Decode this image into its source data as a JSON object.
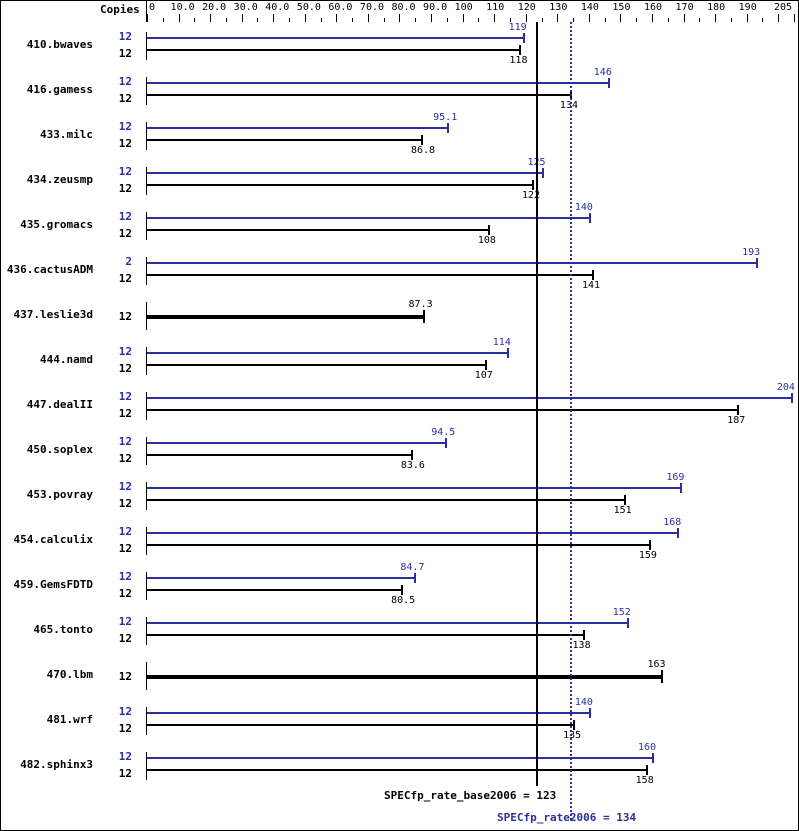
{
  "header": {
    "copies_label": "Copies"
  },
  "axis": {
    "ticks": [
      "0",
      "10.0",
      "20.0",
      "30.0",
      "40.0",
      "50.0",
      "60.0",
      "70.0",
      "80.0",
      "90.0",
      "100",
      "110",
      "120",
      "130",
      "140",
      "150",
      "160",
      "170",
      "180",
      "190",
      "205"
    ],
    "tick_values": [
      0,
      10,
      20,
      30,
      40,
      50,
      60,
      70,
      80,
      90,
      100,
      110,
      120,
      130,
      140,
      150,
      160,
      170,
      180,
      190,
      205
    ],
    "min": 0,
    "max": 205
  },
  "colors": {
    "peak": "#2b2f9e",
    "base": "#000000"
  },
  "summary": {
    "base_label": "SPECfp_rate_base2006 = 123",
    "peak_label": "SPECfp_rate2006 = 134",
    "base_value": 123,
    "peak_value": 134
  },
  "chart_data": {
    "type": "bar",
    "title": "",
    "xlabel": "",
    "ylabel": "",
    "xlim": [
      0,
      205
    ],
    "orientation": "horizontal",
    "categories": [
      "410.bwaves",
      "416.gamess",
      "433.milc",
      "434.zeusmp",
      "435.gromacs",
      "436.cactusADM",
      "437.leslie3d",
      "444.namd",
      "447.dealII",
      "450.soplex",
      "453.povray",
      "454.calculix",
      "459.GemsFDTD",
      "465.tonto",
      "470.lbm",
      "481.wrf",
      "482.sphinx3"
    ],
    "series": [
      {
        "name": "Peak (SPECfp_rate2006)",
        "color": "#2b2f9e",
        "copies": [
          "12",
          "12",
          "12",
          "12",
          "12",
          "2",
          null,
          "12",
          "12",
          "12",
          "12",
          "12",
          "12",
          "12",
          null,
          "12",
          "12"
        ],
        "values": [
          119,
          146,
          95.1,
          125,
          140,
          193,
          null,
          114,
          204,
          94.5,
          169,
          168,
          84.7,
          152,
          null,
          140,
          160
        ],
        "labels": [
          "119",
          "146",
          "95.1",
          "125",
          "140",
          "193",
          null,
          "114",
          "204",
          "94.5",
          "169",
          "168",
          "84.7",
          "152",
          null,
          "140",
          "160"
        ]
      },
      {
        "name": "Base (SPECfp_rate_base2006)",
        "color": "#000000",
        "copies": [
          "12",
          "12",
          "12",
          "12",
          "12",
          "12",
          "12",
          "12",
          "12",
          "12",
          "12",
          "12",
          "12",
          "12",
          "12",
          "12",
          "12"
        ],
        "values": [
          118,
          134,
          86.8,
          122,
          108,
          141,
          87.3,
          107,
          187,
          83.6,
          151,
          159,
          80.5,
          138,
          163,
          135,
          158
        ],
        "labels": [
          "118",
          "134",
          "86.8",
          "122",
          "108",
          "141",
          "87.3",
          "107",
          "187",
          "83.6",
          "151",
          "159",
          "80.5",
          "138",
          "163",
          "135",
          "158"
        ]
      }
    ],
    "reference_lines": [
      {
        "name": "SPECfp_rate_base2006",
        "value": 123,
        "style": "solid",
        "color": "#000000"
      },
      {
        "name": "SPECfp_rate2006",
        "value": 134,
        "style": "dotted",
        "color": "#2b2f9e"
      }
    ],
    "grid": false,
    "legend": "none"
  },
  "rows": [
    {
      "name": "410.bwaves",
      "peak_copies": "12",
      "base_copies": "12",
      "peak": 119,
      "peak_label": "119",
      "base": 118,
      "base_label": "118"
    },
    {
      "name": "416.gamess",
      "peak_copies": "12",
      "base_copies": "12",
      "peak": 146,
      "peak_label": "146",
      "base": 134,
      "base_label": "134"
    },
    {
      "name": "433.milc",
      "peak_copies": "12",
      "base_copies": "12",
      "peak": 95.1,
      "peak_label": "95.1",
      "base": 86.8,
      "base_label": "86.8"
    },
    {
      "name": "434.zeusmp",
      "peak_copies": "12",
      "base_copies": "12",
      "peak": 125,
      "peak_label": "125",
      "base": 122,
      "base_label": "122"
    },
    {
      "name": "435.gromacs",
      "peak_copies": "12",
      "base_copies": "12",
      "peak": 140,
      "peak_label": "140",
      "base": 108,
      "base_label": "108"
    },
    {
      "name": "436.cactusADM",
      "peak_copies": "2",
      "base_copies": "12",
      "peak": 193,
      "peak_label": "193",
      "base": 141,
      "base_label": "141"
    },
    {
      "name": "437.leslie3d",
      "single_copies": "12",
      "single": 87.3,
      "single_label": "87.3"
    },
    {
      "name": "444.namd",
      "peak_copies": "12",
      "base_copies": "12",
      "peak": 114,
      "peak_label": "114",
      "base": 107,
      "base_label": "107"
    },
    {
      "name": "447.dealII",
      "peak_copies": "12",
      "base_copies": "12",
      "peak": 204,
      "peak_label": "204",
      "base": 187,
      "base_label": "187"
    },
    {
      "name": "450.soplex",
      "peak_copies": "12",
      "base_copies": "12",
      "peak": 94.5,
      "peak_label": "94.5",
      "base": 83.6,
      "base_label": "83.6"
    },
    {
      "name": "453.povray",
      "peak_copies": "12",
      "base_copies": "12",
      "peak": 169,
      "peak_label": "169",
      "base": 151,
      "base_label": "151"
    },
    {
      "name": "454.calculix",
      "peak_copies": "12",
      "base_copies": "12",
      "peak": 168,
      "peak_label": "168",
      "base": 159,
      "base_label": "159"
    },
    {
      "name": "459.GemsFDTD",
      "peak_copies": "12",
      "base_copies": "12",
      "peak": 84.7,
      "peak_label": "84.7",
      "base": 80.5,
      "base_label": "80.5"
    },
    {
      "name": "465.tonto",
      "peak_copies": "12",
      "base_copies": "12",
      "peak": 152,
      "peak_label": "152",
      "base": 138,
      "base_label": "138"
    },
    {
      "name": "470.lbm",
      "single_copies": "12",
      "single": 163,
      "single_label": "163"
    },
    {
      "name": "481.wrf",
      "peak_copies": "12",
      "base_copies": "12",
      "peak": 140,
      "peak_label": "140",
      "base": 135,
      "base_label": "135"
    },
    {
      "name": "482.sphinx3",
      "peak_copies": "12",
      "base_copies": "12",
      "peak": 160,
      "peak_label": "160",
      "base": 158,
      "base_label": "158"
    }
  ]
}
